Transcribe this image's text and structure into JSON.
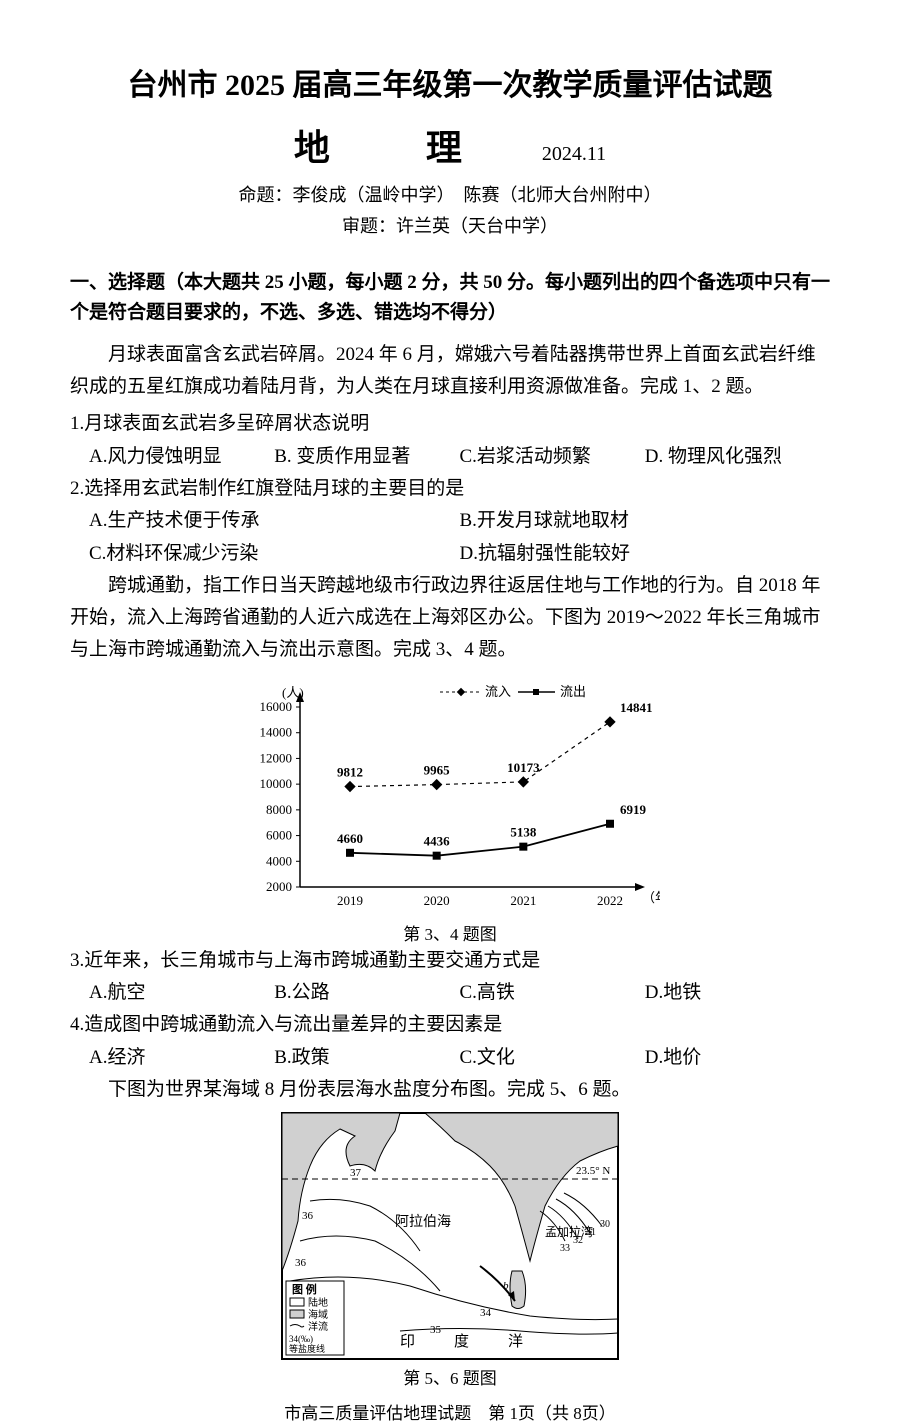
{
  "header": {
    "main_title": "台州市 2025 届高三年级第一次教学质量评估试题",
    "subject": "地　理",
    "date": "2024.11",
    "authors_line1": "命题：李俊成（温岭中学）　陈赛（北师大台州附中）",
    "authors_line2": "审题：许兰英（天台中学）"
  },
  "section1": {
    "header": "一、选择题（本大题共 25 小题，每小题 2 分，共 50 分。每小题列出的四个备选项中只有一个是符合题目要求的，不选、多选、错选均不得分）"
  },
  "passage1": {
    "text": "月球表面富含玄武岩碎屑。2024 年 6 月，嫦娥六号着陆器携带世界上首面玄武岩纤维织成的五星红旗成功着陆月背，为人类在月球直接利用资源做准备。完成 1、2 题。"
  },
  "q1": {
    "stem": "1.月球表面玄武岩多呈碎屑状态说明",
    "a": "A.风力侵蚀明显",
    "b": "B. 变质作用显著",
    "c": "C.岩浆活动频繁",
    "d": "D. 物理风化强烈"
  },
  "q2": {
    "stem": "2.选择用玄武岩制作红旗登陆月球的主要目的是",
    "a": "A.生产技术便于传承",
    "b": "B.开发月球就地取材",
    "c": "C.材料环保减少污染",
    "d": "D.抗辐射强性能较好"
  },
  "passage2": {
    "text": "跨城通勤，指工作日当天跨越地级市行政边界往返居住地与工作地的行为。自 2018 年开始，流入上海跨省通勤的人近六成选在上海郊区办公。下图为 2019～2022 年长三角城市与上海市跨城通勤流入与流出示意图。完成 3、4 题。"
  },
  "chart": {
    "type": "line",
    "y_label": "(人)",
    "x_label": "（年）",
    "x_categories": [
      "2019",
      "2020",
      "2021",
      "2022"
    ],
    "series": [
      {
        "name": "流入",
        "marker": "diamond",
        "dash": "dotted",
        "values": [
          9812,
          9965,
          10173,
          14841
        ],
        "color": "#000000"
      },
      {
        "name": "流出",
        "marker": "square",
        "dash": "solid",
        "values": [
          4660,
          4436,
          5138,
          6919
        ],
        "color": "#000000"
      }
    ],
    "legend_items": [
      "流入",
      "流出"
    ],
    "y_ticks": [
      2000,
      4000,
      6000,
      8000,
      10000,
      12000,
      14000,
      16000
    ],
    "ylim": [
      2000,
      16000
    ],
    "background_color": "#ffffff",
    "axis_color": "#000000",
    "fontsize_labels": 13,
    "fontsize_values": 13,
    "caption": "第 3、4 题图"
  },
  "q3": {
    "stem": "3.近年来，长三角城市与上海市跨城通勤主要交通方式是",
    "a": "A.航空",
    "b": "B.公路",
    "c": "C.高铁",
    "d": "D.地铁"
  },
  "q4": {
    "stem": "4.造成图中跨城通勤流入与流出量差异的主要因素是",
    "a": "A.经济",
    "b": "B.政策",
    "c": "C.文化",
    "d": "D.地价"
  },
  "passage3": {
    "text": "下图为世界某海域 8 月份表层海水盐度分布图。完成 5、6 题。"
  },
  "map": {
    "caption": "第 5、6 题图",
    "labels": {
      "sea1": "阿拉伯海",
      "bay": "孟加拉湾",
      "ocean": "印　度　洋",
      "lat": "23.5° N",
      "legend_title": "图 例",
      "legend_land": "陆地",
      "legend_sea": "海域",
      "legend_current": "洋流",
      "legend_salinity": "等盐度线",
      "salinity_example": "34(‰)"
    },
    "salinity_values": [
      "36",
      "37",
      "36",
      "35",
      "34",
      "33",
      "32",
      "31",
      "30"
    ],
    "land_color": "#d0d0d0",
    "sea_color": "#f0f0f0",
    "line_color": "#000000"
  },
  "footer": {
    "text": "市高三质量评估地理试题　第 1页（共 8页）"
  }
}
